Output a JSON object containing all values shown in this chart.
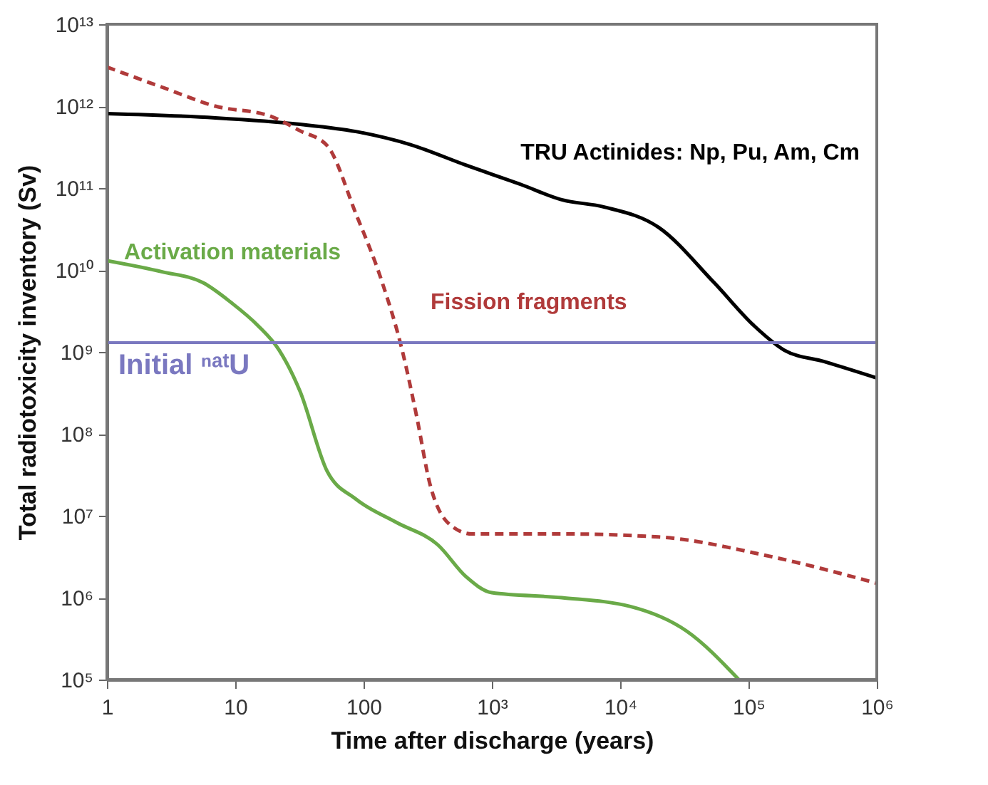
{
  "chart_data": {
    "type": "line",
    "xlabel": "Time after discharge (years)",
    "ylabel": "Total radiotoxicity inventory (Sv)",
    "log": "xy",
    "grid": false,
    "marker": "none",
    "xlim": [
      1,
      1000000
    ],
    "ylim": [
      100000,
      10000000000000
    ],
    "xticks": [
      1,
      10,
      100,
      {
        "value": 1000,
        "label": "10³"
      },
      {
        "value": 10000,
        "label": "10⁴"
      },
      {
        "value": 100000,
        "label": "10⁵"
      },
      {
        "value": 1000000,
        "label": "10⁶"
      }
    ],
    "yticks": [
      {
        "value": 100000,
        "label": "10⁵"
      },
      {
        "value": 1000000,
        "label": "10⁶"
      },
      {
        "value": 10000000,
        "label": "10⁷"
      },
      {
        "value": 100000000,
        "label": "10⁸"
      },
      {
        "value": 1000000000,
        "label": "10⁹"
      },
      {
        "value": 10000000000,
        "label": "10¹⁰"
      },
      {
        "value": 100000000000,
        "label": "10¹¹"
      },
      {
        "value": 1000000000000,
        "label": "10¹²"
      },
      {
        "value": 10000000000000,
        "label": "10¹³"
      }
    ],
    "series": [
      {
        "name": "TRU Actinides: Np, Pu, Am, Cm",
        "color": "#000000",
        "line_style": "solid",
        "x": [
          1,
          7,
          32,
          87,
          230,
          630,
          1700,
          3500,
          7400,
          20000,
          54000,
          110000,
          190000,
          390000,
          1000000
        ],
        "values": [
          810000000000.0,
          720000000000.0,
          600000000000.0,
          490000000000.0,
          340000000000.0,
          190000000000.0,
          110000000000.0,
          72000000000.0,
          59000000000.0,
          33000000000.0,
          7000000000.0,
          2100000000.0,
          1050000000.0,
          760000000.0,
          480000000.0
        ]
      },
      {
        "name": "Fission fragments",
        "color": "#b03a3a",
        "line_style": "dashed",
        "x": [
          1,
          2.7,
          7,
          19,
          32,
          52,
          87,
          140,
          200,
          260,
          330,
          490,
          700,
          3500,
          20000,
          146000,
          1000000
        ],
        "values": [
          3000000000000.0,
          1700000000000.0,
          1000000000000.0,
          750000000000.0,
          500000000000.0,
          330000000000.0,
          49000000000.0,
          7000000000.0,
          1050000000.0,
          160000000.0,
          24000000.0,
          7400000.0,
          6000000.0,
          6000000.0,
          5500000.0,
          3200000.0,
          1500000.0
        ]
      },
      {
        "name": "Activation materials",
        "color": "#6aaa48",
        "line_style": "solid",
        "x": [
          1,
          2.7,
          5.6,
          9.3,
          15,
          22,
          32,
          52,
          87,
          180,
          380,
          630,
          1000,
          3500,
          12000,
          33000,
          84000
        ],
        "values": [
          13000000000.0,
          9500000000.0,
          7000000000.0,
          4000000000.0,
          2100000000.0,
          1050000000.0,
          330000000.0,
          35000000.0,
          16000000.0,
          8300000.0,
          4400000.0,
          1800000.0,
          1150000.0,
          1000000.0,
          780000.0,
          390000.0,
          100000.0
        ]
      }
    ],
    "ref_lines": [
      {
        "axis": "y",
        "value": 1300000000,
        "label": "Initial ⁿᵃᵗU",
        "color": "#7a78c0",
        "line_style": "solid"
      }
    ]
  }
}
